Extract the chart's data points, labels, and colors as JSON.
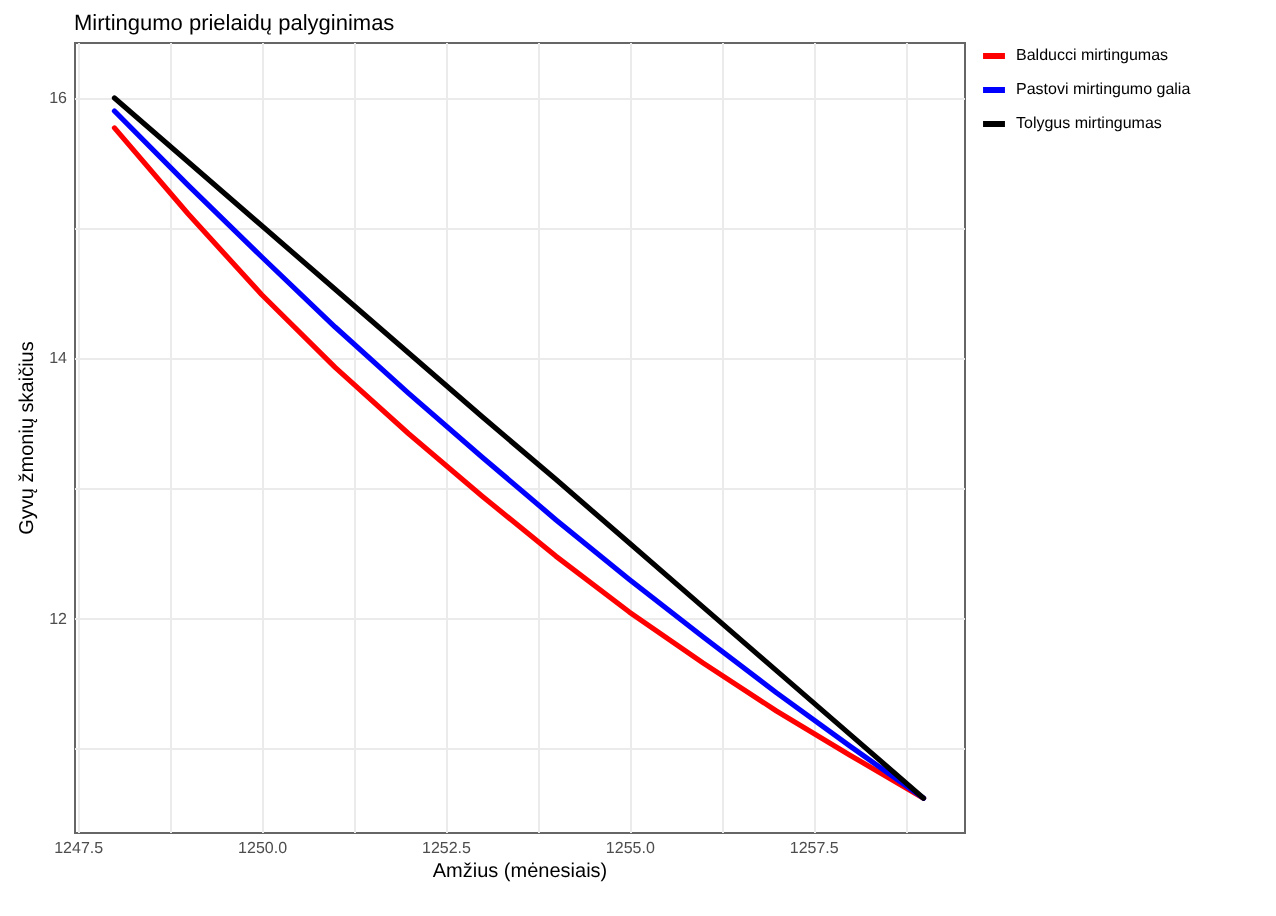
{
  "chart_data": {
    "type": "line",
    "title": "Mirtingumo prielaidų palyginimas",
    "xlabel": "Amžius (mėnesiais)",
    "ylabel": "Gyvų žmonių skaičius",
    "x": [
      1248,
      1249,
      1250,
      1251,
      1252,
      1253,
      1254,
      1255,
      1256,
      1257,
      1258,
      1259
    ],
    "series": [
      {
        "name": "Balducci mirtingumas",
        "color": "#ff0000",
        "values": [
          15.77,
          15.11,
          14.49,
          13.93,
          13.42,
          12.94,
          12.48,
          12.05,
          11.66,
          11.29,
          10.95,
          10.62
        ]
      },
      {
        "name": "Pastovi mirtingumo galia",
        "color": "#0000ff",
        "values": [
          15.9,
          15.33,
          14.78,
          14.24,
          13.73,
          13.24,
          12.76,
          12.3,
          11.86,
          11.43,
          11.02,
          10.62
        ]
      },
      {
        "name": "Tolygus mirtingumas",
        "color": "#000000",
        "values": [
          16,
          15.51,
          15.02,
          14.53,
          14.04,
          13.55,
          13.07,
          12.58,
          12.09,
          11.6,
          11.11,
          10.62
        ]
      }
    ],
    "xlim": [
      1247.45,
      1259.55
    ],
    "xticks": [
      {
        "value": 1247.5,
        "label": "1247.5"
      },
      {
        "value": 1248.75,
        "label": null
      },
      {
        "value": 1250,
        "label": "1250.0"
      },
      {
        "value": 1251.25,
        "label": null
      },
      {
        "value": 1252.5,
        "label": "1252.5"
      },
      {
        "value": 1253.75,
        "label": null
      },
      {
        "value": 1255,
        "label": "1255.0"
      },
      {
        "value": 1256.25,
        "label": null
      },
      {
        "value": 1257.5,
        "label": "1257.5"
      },
      {
        "value": 1258.75,
        "label": null
      }
    ],
    "ylim": [
      10.36,
      16.43
    ],
    "yticks": [
      {
        "value": 11,
        "label": null
      },
      12,
      {
        "value": 13,
        "label": null
      },
      14,
      {
        "value": 15,
        "label": null
      },
      16
    ],
    "grid": true,
    "legend": "right",
    "marker": "none",
    "line_style": "solid"
  }
}
